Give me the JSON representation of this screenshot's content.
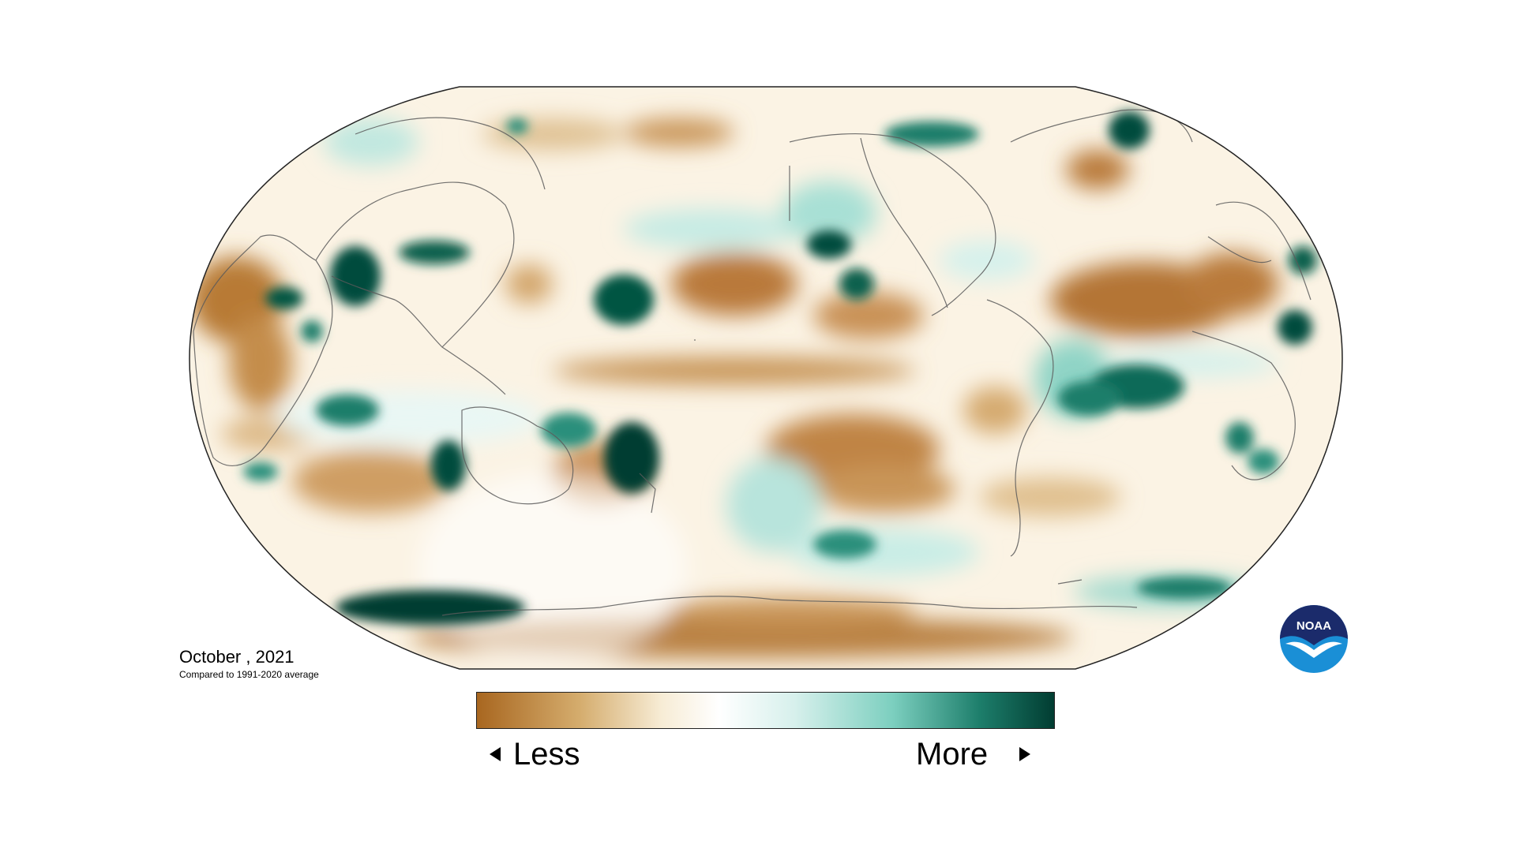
{
  "title": {
    "period": "October , 2021",
    "subtitle": "Compared to 1991-2020 average"
  },
  "legend": {
    "less_label": "Less",
    "more_label": "More",
    "colors": [
      "#a8661f",
      "#d5ad6e",
      "#f7ecd5",
      "#ffffff",
      "#d7f0ec",
      "#7ccfbf",
      "#1d7e6b",
      "#013c31"
    ]
  },
  "logo": {
    "text": "NOAA",
    "colors": {
      "top": "#1b2b6b",
      "bottom": "#1a8fd6",
      "bird": "#ffffff"
    }
  },
  "map": {
    "projection": "robinson",
    "palette": {
      "dry": "#ab6a26",
      "moist": "#024a3c",
      "neutral": "#ffffff"
    }
  }
}
